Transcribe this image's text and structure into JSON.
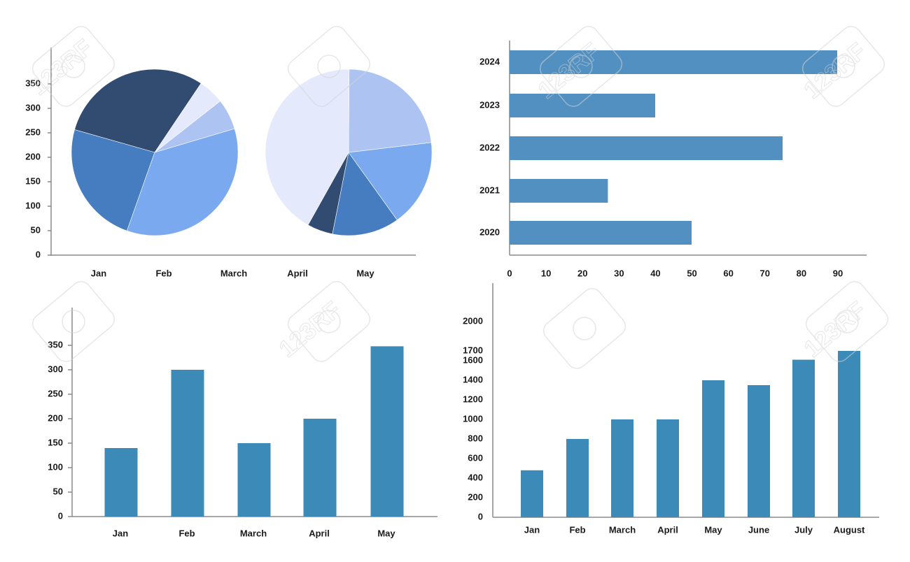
{
  "colors": {
    "bar_blue": "#3c8ab7",
    "hbar_blue": "#5190c1",
    "pie_dark": "#324b70",
    "pie_mid": "#467dc0",
    "pie_light": "#7aa9ef",
    "pie_pale": "#adc4f3",
    "pie_faint": "#e4eafb",
    "axis": "#8a8a8a"
  },
  "watermark_text": "123RF",
  "chart_data": [
    {
      "id": "pies",
      "type": "pie",
      "title": "",
      "categories": [
        "Jan",
        "Feb",
        "March",
        "April",
        "May"
      ],
      "y_ticks": [
        "0",
        "50",
        "100",
        "150",
        "200",
        "250",
        "300",
        "350"
      ],
      "ylim": [
        0,
        350
      ],
      "grid": false,
      "pies": [
        {
          "slices": [
            {
              "value": 30,
              "color": "#324b70"
            },
            {
              "value": 24,
              "color": "#467dc0"
            },
            {
              "value": 35,
              "color": "#7aa9ef"
            },
            {
              "value": 6,
              "color": "#adc4f3"
            },
            {
              "value": 5,
              "color": "#e4eafb"
            }
          ]
        },
        {
          "slices": [
            {
              "value": 5,
              "color": "#324b70"
            },
            {
              "value": 13,
              "color": "#467dc0"
            },
            {
              "value": 17,
              "color": "#7aa9ef"
            },
            {
              "value": 23,
              "color": "#adc4f3"
            },
            {
              "value": 42,
              "color": "#e4eafb"
            }
          ]
        }
      ]
    },
    {
      "id": "hbar",
      "type": "bar",
      "orientation": "horizontal",
      "title": "",
      "categories": [
        "2024",
        "2023",
        "2022",
        "2021",
        "2020"
      ],
      "values": [
        90,
        40,
        75,
        27,
        50
      ],
      "x_ticks": [
        "0",
        "10",
        "20",
        "30",
        "40",
        "50",
        "60",
        "70",
        "80",
        "90"
      ],
      "xlim": [
        0,
        90
      ],
      "grid": false
    },
    {
      "id": "bar1",
      "type": "bar",
      "title": "",
      "categories": [
        "Jan",
        "Feb",
        "March",
        "April",
        "May"
      ],
      "values": [
        140,
        300,
        150,
        200,
        348
      ],
      "y_ticks": [
        "0",
        "50",
        "100",
        "150",
        "200",
        "250",
        "300",
        "350"
      ],
      "ylim": [
        0,
        350
      ],
      "grid": false
    },
    {
      "id": "bar2",
      "type": "bar",
      "title": "",
      "categories": [
        "Jan",
        "Feb",
        "March",
        "April",
        "May",
        "June",
        "July",
        "August"
      ],
      "values": [
        480,
        800,
        1000,
        1000,
        1400,
        1350,
        1610,
        1700
      ],
      "y_ticks": [
        "0",
        "200",
        "400",
        "600",
        "800",
        "1000",
        "1200",
        "1400",
        "1600",
        "1700",
        "2000"
      ],
      "ylim": [
        0,
        2000
      ],
      "grid": false
    }
  ]
}
